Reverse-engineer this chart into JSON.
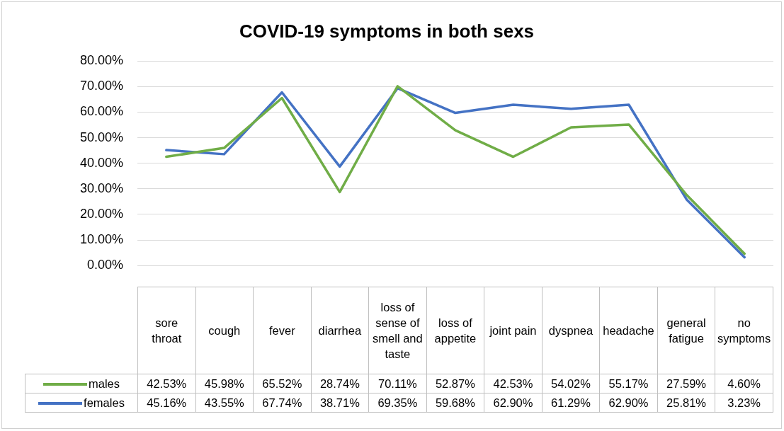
{
  "chart_data": {
    "type": "line",
    "title": "COVID-19 symptoms in both sexs",
    "categories": [
      "sore throat",
      "cough",
      "fever",
      "diarrhea",
      "loss of sense of smell and taste",
      "loss of appetite",
      "joint pain",
      "dyspnea",
      "headache",
      "general fatigue",
      "no symptoms"
    ],
    "series": [
      {
        "name": "males",
        "color": "#70ad47",
        "values": [
          42.53,
          45.98,
          65.52,
          28.74,
          70.11,
          52.87,
          42.53,
          54.02,
          55.17,
          27.59,
          4.6
        ],
        "value_labels": [
          "42.53%",
          "45.98%",
          "65.52%",
          "28.74%",
          "70.11%",
          "52.87%",
          "42.53%",
          "54.02%",
          "55.17%",
          "27.59%",
          "4.60%"
        ]
      },
      {
        "name": "females",
        "color": "#4472c4",
        "values": [
          45.16,
          43.55,
          67.74,
          38.71,
          69.35,
          59.68,
          62.9,
          61.29,
          62.9,
          25.81,
          3.23
        ],
        "value_labels": [
          "45.16%",
          "43.55%",
          "67.74%",
          "38.71%",
          "69.35%",
          "59.68%",
          "62.90%",
          "61.29%",
          "62.90%",
          "25.81%",
          "3.23%"
        ]
      }
    ],
    "ylim": [
      0,
      80
    ],
    "yticks": [
      {
        "value": 0,
        "label": "0.00%"
      },
      {
        "value": 10,
        "label": "10.00%"
      },
      {
        "value": 20,
        "label": "20.00%"
      },
      {
        "value": 30,
        "label": "30.00%"
      },
      {
        "value": 40,
        "label": "40.00%"
      },
      {
        "value": 50,
        "label": "50.00%"
      },
      {
        "value": 60,
        "label": "60.00%"
      },
      {
        "value": 70,
        "label": "70.00%"
      },
      {
        "value": 80,
        "label": "80.00%"
      }
    ],
    "grid": "y",
    "legend": "bottom left",
    "marker": "none",
    "line_style": "solid"
  }
}
